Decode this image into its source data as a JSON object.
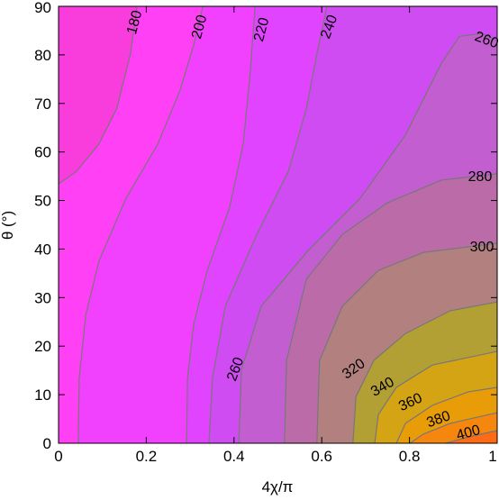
{
  "chart_data": {
    "type": "contour",
    "xlabel": "4χ/π",
    "ylabel": "θ (°)",
    "xlim": [
      0,
      1
    ],
    "ylim": [
      0,
      90
    ],
    "xticks": [
      0,
      0.2,
      0.4,
      0.6,
      0.8,
      1
    ],
    "yticks": [
      0,
      10,
      20,
      30,
      40,
      50,
      60,
      70,
      80,
      90
    ],
    "background_color": "#f83ddc",
    "line_color": "#777777",
    "contours": [
      {
        "level": 180,
        "color": "#ff40f5",
        "x": [
          0,
          0.041,
          0.092,
          0.133,
          0.164,
          0.179
        ],
        "y": [
          53.4,
          56,
          61.6,
          69,
          80.2,
          90
        ]
      },
      {
        "level": 200,
        "color": "#f240ff",
        "x": [
          0.045,
          0.047,
          0.062,
          0.092,
          0.154,
          0.226,
          0.277,
          0.308,
          0.329
        ],
        "y": [
          0,
          13.4,
          26.4,
          37.5,
          50.5,
          61.6,
          72.7,
          82,
          90
        ]
      },
      {
        "level": 220,
        "color": "#e044ff",
        "x": [
          0.292,
          0.294,
          0.308,
          0.339,
          0.39,
          0.421,
          0.437,
          0.448
        ],
        "y": [
          0,
          13.4,
          24.5,
          35.6,
          48.6,
          61.6,
          76.4,
          90
        ]
      },
      {
        "level": 240,
        "color": "#cf4cf2",
        "x": [
          0.343,
          0.351,
          0.38,
          0.452,
          0.524,
          0.565,
          0.589,
          0.612
        ],
        "y": [
          0,
          13.4,
          28.2,
          43,
          56,
          69,
          80.2,
          90
        ]
      },
      {
        "level": 260,
        "color": "#c35ed0",
        "x": [
          0.411,
          0.417,
          0.462,
          0.565,
          0.688,
          0.791,
          0.873,
          0.914,
          0.965,
          1
        ],
        "y": [
          0,
          15.2,
          28.2,
          39.3,
          50.5,
          63.5,
          78.3,
          83.8,
          84.4,
          82.9
        ]
      },
      {
        "level": 280,
        "color": "#bb6ca8",
        "x": [
          0.515,
          0.52,
          0.565,
          0.647,
          0.749,
          0.873,
          1
        ],
        "y": [
          0,
          17.1,
          33.8,
          43,
          49.5,
          54.2,
          55.5
        ]
      },
      {
        "level": 300,
        "color": "#b38080",
        "x": [
          0.589,
          0.595,
          0.647,
          0.729,
          0.832,
          1
        ],
        "y": [
          0,
          17.1,
          28.2,
          35.6,
          39.3,
          41.2
        ]
      },
      {
        "level": 320,
        "color": "#b2a034",
        "x": [
          0.671,
          0.678,
          0.719,
          0.791,
          0.893,
          1
        ],
        "y": [
          0,
          9.6,
          17.1,
          22.6,
          27.3,
          29.1
        ]
      },
      {
        "level": 340,
        "color": "#d4a414",
        "x": [
          0.721,
          0.729,
          0.77,
          0.852,
          1
        ],
        "y": [
          0,
          5.9,
          11.5,
          16.1,
          18.9
        ]
      },
      {
        "level": 360,
        "color": "#e89c08",
        "x": [
          0.77,
          0.791,
          0.852,
          0.934,
          1
        ],
        "y": [
          0,
          4.1,
          7.8,
          10.6,
          11.5
        ]
      },
      {
        "level": 380,
        "color": "#f5860e",
        "x": [
          0.801,
          0.832,
          0.893,
          1
        ],
        "y": [
          0,
          1.9,
          4.1,
          6.3
        ]
      },
      {
        "level": 400,
        "color": "#ff6a14",
        "x": [
          0.883,
          0.934,
          1
        ],
        "y": [
          0,
          1.3,
          2.6
        ]
      }
    ]
  }
}
